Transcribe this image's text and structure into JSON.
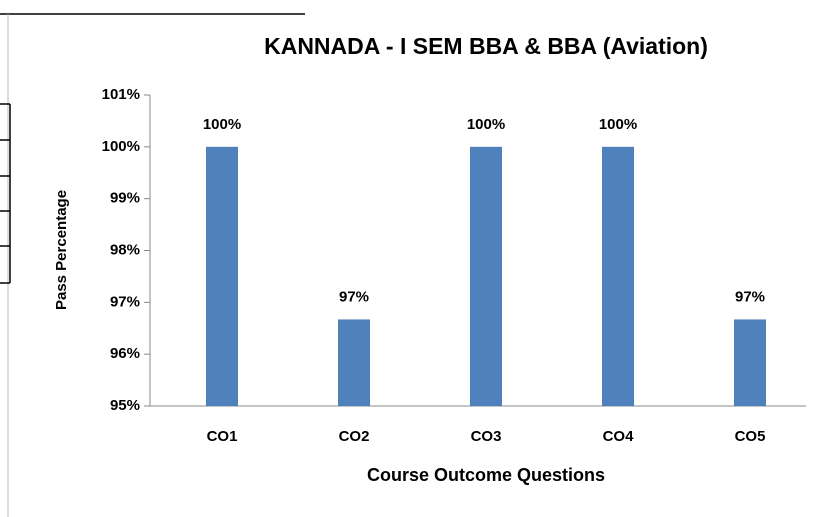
{
  "chart_data": {
    "type": "bar",
    "title": "KANNADA - I SEM BBA & BBA (Aviation)",
    "x_label": "Course Outcome Questions",
    "y_label": "Pass Percentage",
    "categories": [
      "CO1",
      "CO2",
      "CO3",
      "CO4",
      "CO5"
    ],
    "values": [
      100,
      96.67,
      100,
      100,
      96.67
    ],
    "value_labels": [
      "100%",
      "97%",
      "100%",
      "100%",
      "97%"
    ],
    "color": "#4f81bd",
    "ylim": [
      95,
      101
    ],
    "yticks": [
      {
        "value": 95,
        "label": "95%"
      },
      {
        "value": 96,
        "label": "96%"
      },
      {
        "value": 97,
        "label": "97%"
      },
      {
        "value": 98,
        "label": "98%"
      },
      {
        "value": 99,
        "label": "99%"
      },
      {
        "value": 100,
        "label": "100%"
      },
      {
        "value": 101,
        "label": "101%"
      }
    ],
    "grid": false
  }
}
